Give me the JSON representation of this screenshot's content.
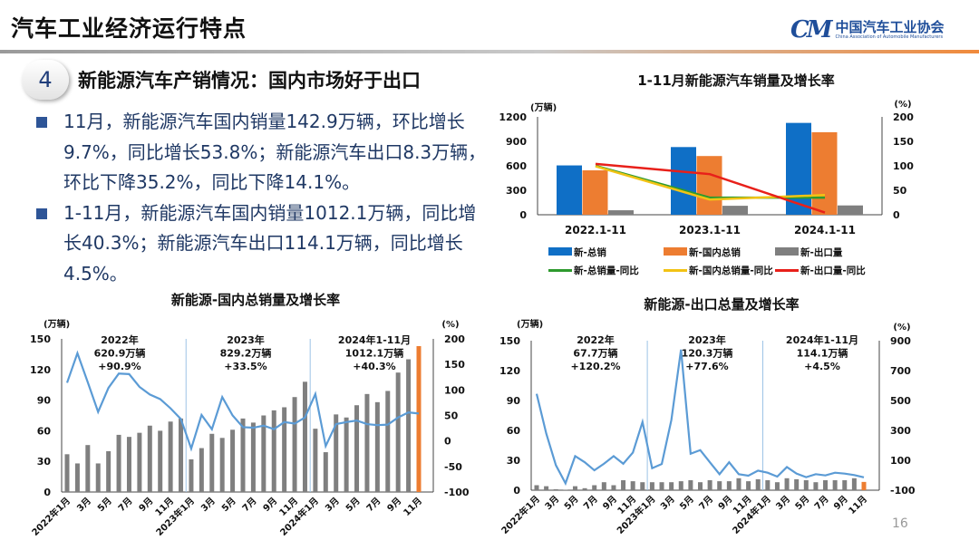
{
  "slide": {
    "title": "汽车工业经济运行特点",
    "logo_cn": "中国汽车工业协会",
    "logo_en": "China Association of Automobile Manufacturers",
    "logo_mark": "CM",
    "section_number": "4",
    "section_title": "新能源汽车产销情况：国内市场好于出口",
    "bullets": [
      "11月，新能源汽车国内销量142.9万辆，环比增长9.7%，同比增长53.8%；新能源汽车出口8.3万辆，环比下降35.2%，同比下降14.1%。",
      "1-11月，新能源汽车国内销量1012.1万辆，同比增长40.3%；新能源汽车出口114.1万辆，同比增长4.5%。"
    ],
    "page_number": "16",
    "colors": {
      "accent_blue": "#2e5597",
      "text_blue": "#1f3864",
      "orange": "#ed7d31"
    }
  },
  "chart_data": [
    {
      "type": "bar+line",
      "title": "1-11月新能源汽车销量及增长率",
      "ylabel_left": "(万辆)",
      "ylabel_right": "(%)",
      "ylim_left": [
        0,
        1200
      ],
      "ylim_right": [
        0,
        200
      ],
      "yticks_left": [
        "0",
        "300",
        "600",
        "900",
        "1200"
      ],
      "yticks_right": [
        "0",
        "50",
        "100",
        "150",
        "200"
      ],
      "grid": false,
      "legend": "bottom",
      "categories": [
        "2022.1-11",
        "2023.1-11",
        "2024.1-11"
      ],
      "bar_series": [
        {
          "name": "新-总销",
          "color": "#0f6fc6",
          "values": [
            605,
            830,
            1126.2
          ]
        },
        {
          "name": "新-国内总销",
          "color": "#ed7d31",
          "values": [
            545,
            720,
            1012.1
          ]
        },
        {
          "name": "新-出口量",
          "color": "#7f7f7f",
          "values": [
            55,
            110,
            114.1
          ]
        }
      ],
      "line_series": [
        {
          "name": "新-总销量-同比",
          "color": "#2e9a2e",
          "values": [
            100,
            35,
            35
          ]
        },
        {
          "name": "新-国内总销量-同比",
          "color": "#f2c314",
          "values": [
            99,
            31,
            40.3
          ]
        },
        {
          "name": "新-出口量-同比",
          "color": "#e8201a",
          "values": [
            104,
            83,
            4.5
          ]
        }
      ]
    },
    {
      "type": "bar+line",
      "title": "新能源-国内总销量及增长率",
      "ylabel_left": "(万辆)",
      "ylabel_right": "(%)",
      "ylim_left": [
        0,
        150
      ],
      "ylim_right": [
        -100,
        200
      ],
      "yticks_left": [
        "0",
        "30",
        "60",
        "90",
        "120",
        "150"
      ],
      "yticks_right": [
        "-100",
        "-50",
        "0",
        "50",
        "100",
        "150",
        "200"
      ],
      "grid": false,
      "tick_labels": [
        "2022年1月",
        "3月",
        "5月",
        "7月",
        "9月",
        "11月",
        "2023年1月",
        "3月",
        "5月",
        "7月",
        "9月",
        "11月",
        "2024年1月",
        "3月",
        "5月",
        "7月",
        "9月",
        "11月"
      ],
      "bar_color": "#7f7f7f",
      "highlight_color": "#ed7d31",
      "line_color": "#5b9bd5",
      "bars": [
        37,
        28,
        46,
        28,
        40,
        56,
        54,
        58,
        65,
        60,
        69,
        72,
        32,
        43,
        57,
        53,
        61,
        72,
        68,
        75,
        80,
        83,
        93,
        108,
        62,
        39,
        76,
        73,
        85,
        96,
        88,
        99,
        117,
        130,
        142.9
      ],
      "growth": [
        114,
        172,
        115,
        57,
        104,
        132,
        131,
        106,
        91,
        82,
        64,
        43,
        -15,
        51,
        23,
        86,
        50,
        27,
        26,
        30,
        23,
        37,
        34,
        46,
        92,
        -10,
        33,
        37,
        40,
        33,
        31,
        32,
        46,
        56,
        53.8
      ],
      "annotations": [
        {
          "lines": [
            "2022年",
            "620.9万辆",
            "+90.9%"
          ]
        },
        {
          "lines": [
            "2023年",
            "829.2万辆",
            "+33.5%"
          ]
        },
        {
          "lines": [
            "2024年1-11月",
            "1012.1万辆",
            "+40.3%"
          ]
        }
      ]
    },
    {
      "type": "bar+line",
      "title": "新能源-出口总量及增长率",
      "ylabel_left": "(万辆)",
      "ylabel_right": "(%)",
      "ylim_left": [
        0,
        150
      ],
      "ylim_right": [
        -100,
        900
      ],
      "yticks_left": [
        "0",
        "30",
        "60",
        "90",
        "120",
        "150"
      ],
      "yticks_right": [
        "-100",
        "100",
        "300",
        "500",
        "700",
        "900"
      ],
      "grid": false,
      "tick_labels": [
        "2022年1月",
        "3月",
        "5月",
        "7月",
        "9月",
        "11月",
        "2023年1月",
        "3月",
        "5月",
        "7月",
        "9月",
        "11月",
        "2024年1月",
        "3月",
        "5月",
        "7月",
        "9月",
        "11月"
      ],
      "bar_color": "#7f7f7f",
      "highlight_color": "#ed7d31",
      "line_color": "#5b9bd5",
      "bars": [
        5,
        4,
        1,
        0.5,
        4,
        2,
        5,
        8,
        5,
        10,
        9,
        8,
        8,
        8,
        8,
        9,
        10,
        8,
        10,
        9,
        9,
        12,
        9,
        11,
        10,
        8,
        12,
        11,
        10,
        8,
        10,
        10,
        10,
        12,
        8.3
      ],
      "growth": [
        545,
        279,
        67,
        -54,
        128,
        87,
        33,
        77,
        128,
        77,
        152,
        356,
        47,
        75,
        370,
        840,
        144,
        168,
        87,
        7,
        87,
        7,
        -3,
        31,
        17,
        -9,
        55,
        11,
        -13,
        7,
        -1,
        17,
        11,
        1,
        -14.1
      ],
      "annotations": [
        {
          "lines": [
            "2022年",
            "67.7万辆",
            "+120.2%"
          ]
        },
        {
          "lines": [
            "2023年",
            "120.3万辆",
            "+77.6%"
          ]
        },
        {
          "lines": [
            "2024年1-11月",
            "114.1万辆",
            "+4.5%"
          ]
        }
      ]
    }
  ]
}
